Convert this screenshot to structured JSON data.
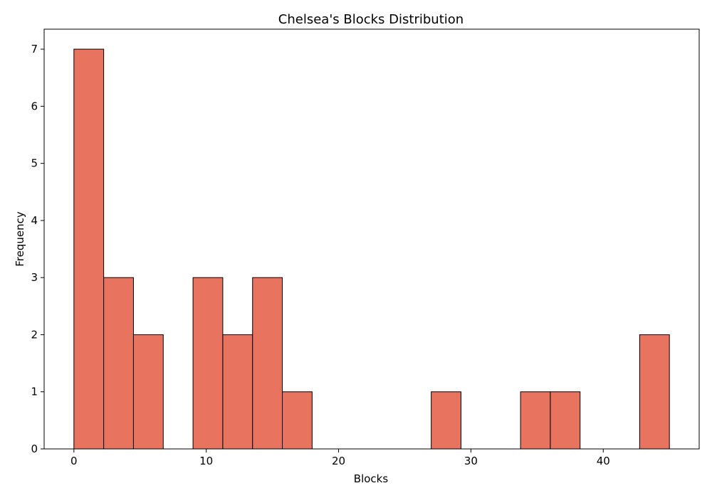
{
  "chart_data": {
    "type": "bar",
    "title": "Chelsea's Blocks Distribution",
    "xlabel": "Blocks",
    "ylabel": "Frequency",
    "xlim": [
      -2.25,
      47.25
    ],
    "ylim": [
      0,
      7.35
    ],
    "xticks": [
      0,
      10,
      20,
      30,
      40
    ],
    "yticks": [
      0,
      1,
      2,
      3,
      4,
      5,
      6,
      7
    ],
    "bin_start": 0,
    "bin_width": 2.25,
    "counts": [
      7,
      3,
      2,
      0,
      3,
      2,
      3,
      1,
      0,
      0,
      0,
      0,
      1,
      0,
      0,
      1,
      1,
      0,
      0,
      2
    ],
    "bar_color": "#e8735f",
    "edge_color": "#000000",
    "grid": false
  }
}
